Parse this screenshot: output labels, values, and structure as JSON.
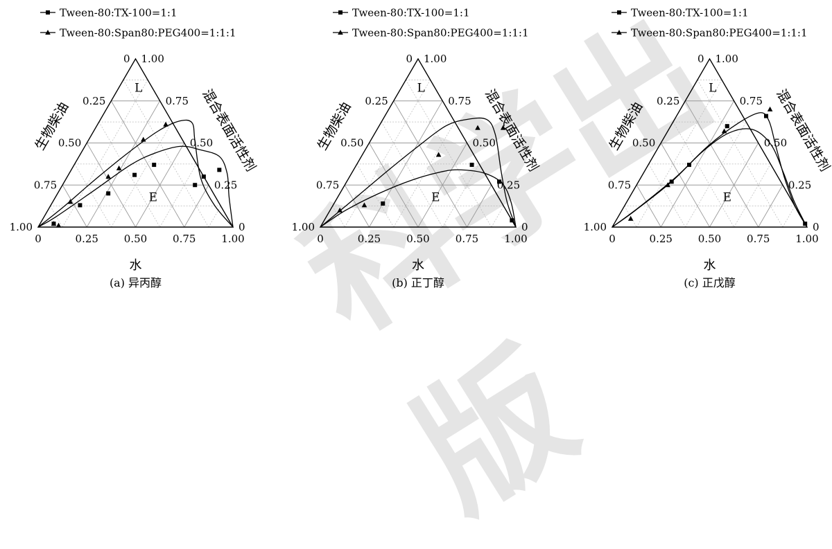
{
  "legend_labels": [
    "Tween-80:TX-100=1:1",
    "Tween-80:Span80:PEG400=1:1:1"
  ],
  "axis_labels": {
    "bottom": "水",
    "left": "生物柴油",
    "right": "混合表面活性剂"
  },
  "ticks": [
    "0",
    "0.25",
    "0.50",
    "0.75",
    "1.00"
  ],
  "region_labels": {
    "top": "L",
    "bottom": "E"
  },
  "colors": {
    "axis": "#000000",
    "grid": "#b8b8b8",
    "curve": "#000000"
  },
  "watermark_text": "科学出版",
  "chart_data": [
    {
      "type": "scatter",
      "subplot_label": "(a) 异丙醇",
      "components": [
        "水",
        "混合表面活性剂",
        "生物柴油"
      ],
      "series": [
        {
          "name": "Tween-80:TX-100=1:1",
          "marker": "square",
          "points": [
            [
              0.07,
              0.02
            ],
            [
              0.15,
              0.13
            ],
            [
              0.26,
              0.2
            ],
            [
              0.34,
              0.31
            ],
            [
              0.41,
              0.37
            ],
            [
              0.68,
              0.25
            ],
            [
              0.7,
              0.3
            ],
            [
              0.76,
              0.34
            ]
          ]
        },
        {
          "name": "Tween-80:Span80:PEG400=1:1:1",
          "marker": "triangle",
          "points": [
            [
              0.07,
              0.02
            ],
            [
              0.1,
              0.01
            ],
            [
              0.09,
              0.15
            ],
            [
              0.21,
              0.3
            ],
            [
              0.24,
              0.35
            ],
            [
              0.28,
              0.52
            ],
            [
              0.35,
              0.61
            ]
          ]
        }
      ],
      "curves": [
        [
          [
            0,
            0
          ],
          [
            0.06,
            0.06
          ],
          [
            0.18,
            0.22
          ],
          [
            0.29,
            0.37
          ],
          [
            0.38,
            0.44
          ],
          [
            0.49,
            0.48
          ],
          [
            0.6,
            0.46
          ],
          [
            0.72,
            0.42
          ],
          [
            0.81,
            0.32
          ],
          [
            0.89,
            0.18
          ],
          [
            1,
            0
          ]
        ],
        [
          [
            0,
            0
          ],
          [
            0.07,
            0.12
          ],
          [
            0.15,
            0.28
          ],
          [
            0.24,
            0.44
          ],
          [
            0.33,
            0.57
          ],
          [
            0.41,
            0.63
          ],
          [
            0.48,
            0.62
          ],
          [
            0.55,
            0.51
          ],
          [
            0.69,
            0.29
          ],
          [
            0.84,
            0.13
          ],
          [
            1,
            0
          ]
        ]
      ]
    },
    {
      "type": "scatter",
      "subplot_label": "(b) 正丁醇",
      "components": [
        "水",
        "混合表面活性剂",
        "生物柴油"
      ],
      "series": [
        {
          "name": "Tween-80:TX-100=1:1",
          "marker": "square",
          "points": [
            [
              0.25,
              0.14
            ],
            [
              0.59,
              0.37
            ],
            [
              0.78,
              0.27
            ],
            [
              0.96,
              0.04
            ]
          ]
        },
        {
          "name": "Tween-80:Span80:PEG400=1:1:1",
          "marker": "triangle",
          "points": [
            [
              0.05,
              0.1
            ],
            [
              0.16,
              0.13
            ],
            [
              0.39,
              0.43
            ],
            [
              0.51,
              0.59
            ],
            [
              0.64,
              0.59
            ]
          ]
        }
      ],
      "curves": [
        [
          [
            0,
            0
          ],
          [
            0.08,
            0.1
          ],
          [
            0.2,
            0.2
          ],
          [
            0.33,
            0.28
          ],
          [
            0.46,
            0.33
          ],
          [
            0.55,
            0.34
          ],
          [
            0.68,
            0.32
          ],
          [
            0.8,
            0.26
          ],
          [
            0.9,
            0.15
          ],
          [
            1,
            0
          ]
        ],
        [
          [
            0,
            0
          ],
          [
            0.07,
            0.13
          ],
          [
            0.18,
            0.34
          ],
          [
            0.26,
            0.48
          ],
          [
            0.34,
            0.6
          ],
          [
            0.43,
            0.64
          ],
          [
            0.53,
            0.64
          ],
          [
            0.62,
            0.55
          ],
          [
            0.76,
            0.33
          ],
          [
            0.88,
            0.15
          ],
          [
            1,
            0
          ]
        ]
      ]
    },
    {
      "type": "scatter",
      "subplot_label": "(c) 正戊醇",
      "components": [
        "水",
        "混合表面活性剂",
        "生物柴油"
      ],
      "series": [
        {
          "name": "Tween-80:TX-100=1:1",
          "marker": "square",
          "points": [
            [
              0.17,
              0.27
            ],
            [
              0.21,
              0.37
            ],
            [
              0.29,
              0.6
            ],
            [
              0.46,
              0.66
            ],
            [
              0.98,
              0.02
            ]
          ]
        },
        {
          "name": "Tween-80:Span80:PEG400=1:1:1",
          "marker": "triangle",
          "points": [
            [
              0.07,
              0.05
            ],
            [
              0.16,
              0.25
            ],
            [
              0.29,
              0.57
            ],
            [
              0.46,
              0.7
            ]
          ]
        }
      ],
      "curves": [
        [
          [
            0,
            0
          ],
          [
            0.08,
            0.12
          ],
          [
            0.18,
            0.3
          ],
          [
            0.25,
            0.48
          ],
          [
            0.34,
            0.62
          ],
          [
            0.42,
            0.68
          ],
          [
            0.49,
            0.63
          ],
          [
            0.6,
            0.48
          ],
          [
            0.74,
            0.29
          ],
          [
            0.88,
            0.12
          ],
          [
            1,
            0
          ]
        ],
        [
          [
            0,
            0
          ],
          [
            0.07,
            0.1
          ],
          [
            0.17,
            0.27
          ],
          [
            0.24,
            0.45
          ],
          [
            0.32,
            0.56
          ],
          [
            0.43,
            0.58
          ],
          [
            0.57,
            0.49
          ],
          [
            0.72,
            0.32
          ],
          [
            0.86,
            0.15
          ],
          [
            1,
            0
          ]
        ]
      ]
    }
  ]
}
